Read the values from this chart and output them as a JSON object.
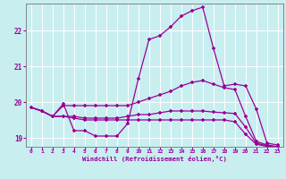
{
  "title": "",
  "xlabel": "Windchill (Refroidissement éolien,°C)",
  "ylabel": "",
  "bg_color": "#c8eef0",
  "line_color": "#990099",
  "grid_color": "#ffffff",
  "xlim": [
    -0.5,
    23.5
  ],
  "ylim": [
    18.75,
    22.75
  ],
  "xticks": [
    0,
    1,
    2,
    3,
    4,
    5,
    6,
    7,
    8,
    9,
    10,
    11,
    12,
    13,
    14,
    15,
    16,
    17,
    18,
    19,
    20,
    21,
    22,
    23
  ],
  "yticks": [
    19,
    20,
    21,
    22
  ],
  "series": [
    [
      19.85,
      19.75,
      19.6,
      19.95,
      19.2,
      19.2,
      19.05,
      19.05,
      19.05,
      19.4,
      20.65,
      21.75,
      21.85,
      22.1,
      22.4,
      22.55,
      22.65,
      21.5,
      20.45,
      20.5,
      20.45,
      19.8,
      18.85,
      18.8
    ],
    [
      19.85,
      19.75,
      19.6,
      19.9,
      19.9,
      19.9,
      19.9,
      19.9,
      19.9,
      19.9,
      20.0,
      20.1,
      20.2,
      20.3,
      20.45,
      20.55,
      20.6,
      20.5,
      20.4,
      20.35,
      19.6,
      18.9,
      18.8,
      18.75
    ],
    [
      19.85,
      19.75,
      19.6,
      19.6,
      19.6,
      19.55,
      19.55,
      19.55,
      19.55,
      19.6,
      19.65,
      19.65,
      19.7,
      19.75,
      19.75,
      19.75,
      19.75,
      19.72,
      19.7,
      19.68,
      19.3,
      18.85,
      18.78,
      18.75
    ],
    [
      19.85,
      19.75,
      19.6,
      19.6,
      19.55,
      19.5,
      19.5,
      19.5,
      19.5,
      19.5,
      19.5,
      19.5,
      19.5,
      19.5,
      19.5,
      19.5,
      19.5,
      19.5,
      19.5,
      19.45,
      19.1,
      18.82,
      18.76,
      18.75
    ]
  ]
}
